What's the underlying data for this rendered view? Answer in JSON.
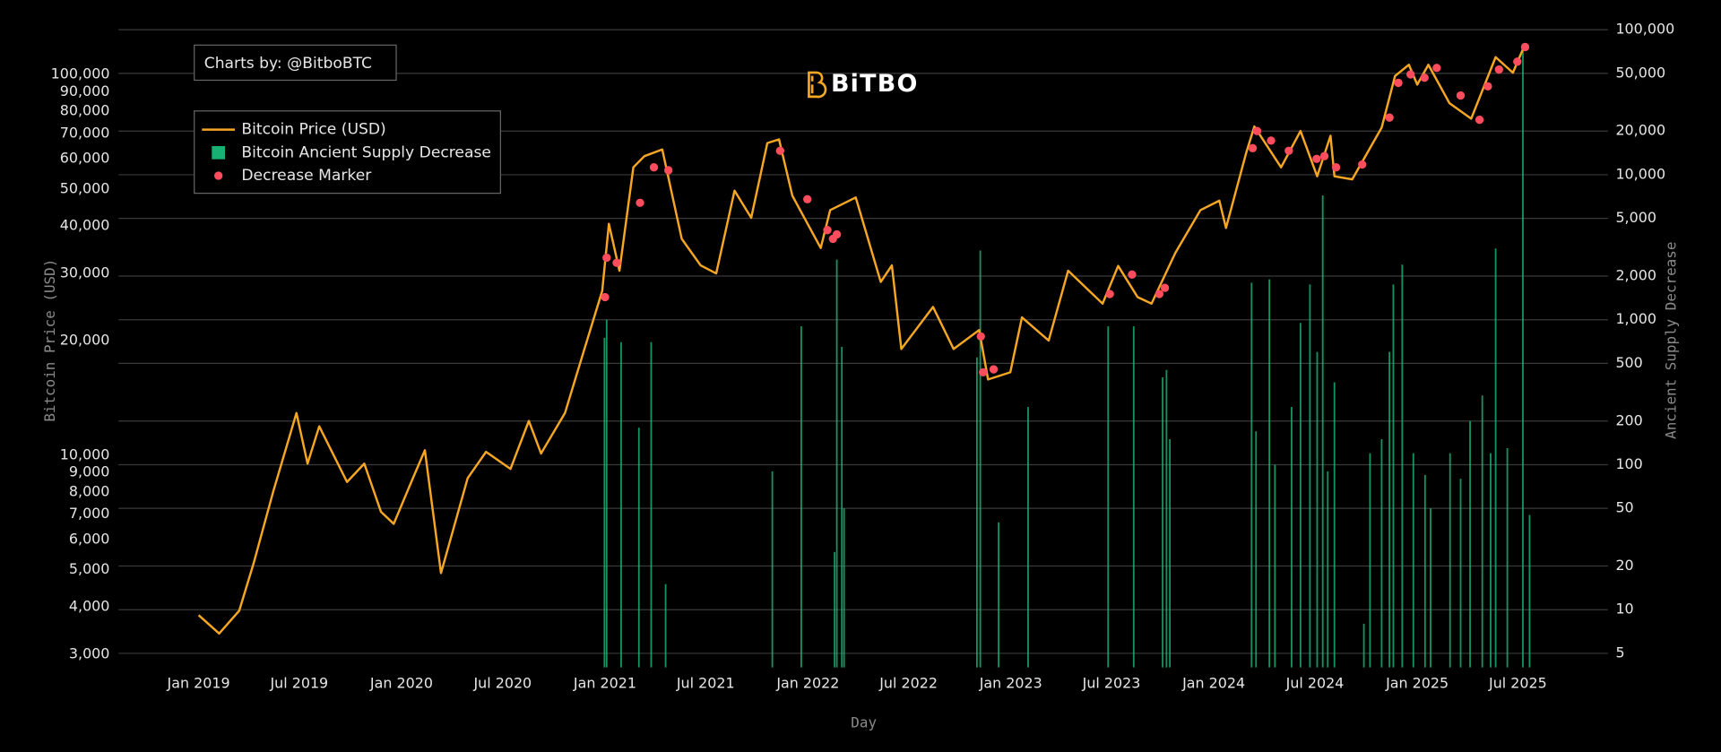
{
  "chart_data": {
    "type": "mixed",
    "annotation": "Charts by: @BitboBTC",
    "logo": "BiTBO",
    "x_label": "Day",
    "y_label": "Bitcoin Price (USD)",
    "y2_label": "Ancient Supply Decrease",
    "log_scale": true,
    "grid": true,
    "legend_position": "top-left",
    "xlim": [
      "2018-08-10",
      "2025-12-10"
    ],
    "xticks": [
      {
        "value": "2019-01-01",
        "label": "Jan 2019"
      },
      {
        "value": "2019-07-01",
        "label": "Jul 2019"
      },
      {
        "value": "2020-01-01",
        "label": "Jan 2020"
      },
      {
        "value": "2020-07-01",
        "label": "Jul 2020"
      },
      {
        "value": "2021-01-01",
        "label": "Jan 2021"
      },
      {
        "value": "2021-07-01",
        "label": "Jul 2021"
      },
      {
        "value": "2022-01-01",
        "label": "Jan 2022"
      },
      {
        "value": "2022-07-01",
        "label": "Jul 2022"
      },
      {
        "value": "2023-01-01",
        "label": "Jan 2023"
      },
      {
        "value": "2023-07-01",
        "label": "Jul 2023"
      },
      {
        "value": "2024-01-01",
        "label": "Jan 2024"
      },
      {
        "value": "2024-07-01",
        "label": "Jul 2024"
      },
      {
        "value": "2025-01-01",
        "label": "Jan 2025"
      },
      {
        "value": "2025-07-01",
        "label": "Jul 2025"
      }
    ],
    "ylim": [
      2770,
      131000
    ],
    "yticks": [
      {
        "value": 3000,
        "label": "3,000"
      },
      {
        "value": 4000,
        "label": "4,000"
      },
      {
        "value": 5000,
        "label": "5,000"
      },
      {
        "value": 6000,
        "label": "6,000"
      },
      {
        "value": 7000,
        "label": "7,000"
      },
      {
        "value": 8000,
        "label": "8,000"
      },
      {
        "value": 9000,
        "label": "9,000"
      },
      {
        "value": 10000,
        "label": "10,000"
      },
      {
        "value": 20000,
        "label": "20,000"
      },
      {
        "value": 30000,
        "label": "30,000"
      },
      {
        "value": 40000,
        "label": "40,000"
      },
      {
        "value": 50000,
        "label": "50,000"
      },
      {
        "value": 60000,
        "label": "60,000"
      },
      {
        "value": 70000,
        "label": "70,000"
      },
      {
        "value": 80000,
        "label": "80,000"
      },
      {
        "value": 90000,
        "label": "90,000"
      },
      {
        "value": 100000,
        "label": "100,000"
      }
    ],
    "y2lim": [
      4,
      100000
    ],
    "y2ticks": [
      5,
      10,
      20,
      50,
      100,
      200,
      500,
      {
        "value": 1000,
        "label": "1,000"
      },
      {
        "value": 2000,
        "label": "2,000"
      },
      {
        "value": 5000,
        "label": "5,000"
      },
      {
        "value": 10000,
        "label": "10,000"
      },
      {
        "value": 20000,
        "label": "20,000"
      },
      {
        "value": 50000,
        "label": "50,000"
      },
      {
        "value": 100000,
        "label": "100,000"
      }
    ],
    "series": [
      {
        "name": "Bitcoin Price (USD)",
        "type": "line",
        "color": "#f5a623",
        "x": [
          "2019-01-01",
          "2019-02-07",
          "2019-03-15",
          "2019-04-10",
          "2019-05-15",
          "2019-06-26",
          "2019-07-16",
          "2019-08-06",
          "2019-09-25",
          "2019-10-26",
          "2019-11-25",
          "2019-12-18",
          "2020-01-20",
          "2020-02-12",
          "2020-03-12",
          "2020-04-29",
          "2020-06-01",
          "2020-07-15",
          "2020-08-17",
          "2020-09-08",
          "2020-10-21",
          "2020-11-25",
          "2020-12-27",
          "2021-01-08",
          "2021-01-27",
          "2021-02-21",
          "2021-03-13",
          "2021-04-14",
          "2021-05-19",
          "2021-06-22",
          "2021-07-20",
          "2021-08-22",
          "2021-09-21",
          "2021-10-20",
          "2021-11-10",
          "2021-12-04",
          "2022-01-24",
          "2022-02-10",
          "2022-03-28",
          "2022-05-12",
          "2022-06-01",
          "2022-06-18",
          "2022-08-14",
          "2022-09-20",
          "2022-11-05",
          "2022-11-21",
          "2022-12-31",
          "2023-01-21",
          "2023-03-10",
          "2023-04-14",
          "2023-06-15",
          "2023-07-13",
          "2023-08-17",
          "2023-09-11",
          "2023-10-24",
          "2023-12-08",
          "2024-01-11",
          "2024-01-23",
          "2024-02-28",
          "2024-03-14",
          "2024-05-01",
          "2024-06-05",
          "2024-07-05",
          "2024-07-29",
          "2024-08-05",
          "2024-09-06",
          "2024-10-29",
          "2024-11-22",
          "2024-12-17",
          "2025-01-01",
          "2025-01-21",
          "2025-02-28",
          "2025-04-08",
          "2025-05-22",
          "2025-06-22",
          "2025-07-14"
        ],
        "values": [
          3800,
          3400,
          3900,
          5200,
          8000,
          12900,
          9500,
          11900,
          8500,
          9500,
          7100,
          6600,
          8600,
          10300,
          4900,
          8700,
          10200,
          9200,
          12300,
          10100,
          12900,
          19000,
          27000,
          40500,
          30500,
          57000,
          61000,
          63500,
          37000,
          31500,
          30000,
          49500,
          42000,
          66000,
          67500,
          48000,
          35000,
          44000,
          47500,
          28500,
          31500,
          19000,
          24500,
          19000,
          21300,
          15800,
          16500,
          23000,
          20000,
          30500,
          25000,
          31400,
          26000,
          25000,
          34000,
          44000,
          46600,
          39500,
          62000,
          73000,
          57000,
          71000,
          54000,
          69000,
          54000,
          53000,
          72500,
          99000,
          106000,
          94000,
          106000,
          84000,
          76500,
          111000,
          101000,
          120000
        ]
      },
      {
        "name": "Bitcoin Ancient Supply Decrease",
        "type": "bar",
        "axis": "y2",
        "color": "#19c47f",
        "x": [
          "2020-12-31",
          "2021-01-04",
          "2021-01-30",
          "2021-03-03",
          "2021-03-25",
          "2021-04-20",
          "2021-10-29",
          "2021-12-20",
          "2022-02-18",
          "2022-02-22",
          "2022-03-03",
          "2022-03-07",
          "2022-11-01",
          "2022-11-07",
          "2022-12-10",
          "2023-02-01",
          "2023-06-25",
          "2023-08-10",
          "2023-10-01",
          "2023-10-08",
          "2023-10-14",
          "2024-03-09",
          "2024-03-17",
          "2024-04-10",
          "2024-04-20",
          "2024-05-20",
          "2024-06-05",
          "2024-06-22",
          "2024-07-05",
          "2024-07-15",
          "2024-07-24",
          "2024-08-05",
          "2024-09-27",
          "2024-10-08",
          "2024-10-29",
          "2024-11-12",
          "2024-11-19",
          "2024-12-05",
          "2024-12-25",
          "2025-01-15",
          "2025-01-25",
          "2025-03-01",
          "2025-03-20",
          "2025-04-06",
          "2025-04-28",
          "2025-05-13",
          "2025-05-22",
          "2025-06-12",
          "2025-07-10",
          "2025-07-22"
        ],
        "values": [
          750,
          1000,
          700,
          180,
          700,
          15,
          90,
          900,
          25,
          2600,
          650,
          50,
          550,
          3000,
          40,
          250,
          900,
          900,
          400,
          450,
          150,
          1800,
          170,
          1900,
          100,
          250,
          950,
          1750,
          600,
          7200,
          90,
          370,
          8,
          120,
          150,
          600,
          1750,
          2400,
          120,
          85,
          50,
          120,
          80,
          200,
          300,
          120,
          3100,
          130,
          80000,
          45
        ]
      },
      {
        "name": "Decrease Marker",
        "type": "scatter",
        "color": "#ff4d5e",
        "x": [
          "2021-01-01",
          "2021-01-04",
          "2021-01-22",
          "2021-03-05",
          "2021-03-30",
          "2021-04-25",
          "2021-11-12",
          "2021-12-31",
          "2022-02-05",
          "2022-02-15",
          "2022-02-22",
          "2022-11-08",
          "2022-11-12",
          "2022-12-01",
          "2023-06-28",
          "2023-08-07",
          "2023-09-25",
          "2023-10-05",
          "2024-03-11",
          "2024-03-19",
          "2024-04-13",
          "2024-05-15",
          "2024-07-04",
          "2024-07-18",
          "2024-08-08",
          "2024-09-24",
          "2024-11-12",
          "2024-11-28",
          "2024-12-20",
          "2025-01-14",
          "2025-02-05",
          "2025-03-20",
          "2025-04-23",
          "2025-05-08",
          "2025-05-28",
          "2025-06-30",
          "2025-07-14"
        ],
        "values": [
          26000,
          33000,
          32000,
          46000,
          57000,
          56000,
          63000,
          47000,
          39000,
          37000,
          38000,
          20500,
          16500,
          16800,
          26500,
          29800,
          26500,
          27500,
          64000,
          71000,
          67000,
          63000,
          60000,
          61000,
          57000,
          58000,
          77000,
          95000,
          100000,
          98000,
          104000,
          88000,
          76000,
          93000,
          103000,
          108000,
          118000
        ]
      }
    ]
  }
}
